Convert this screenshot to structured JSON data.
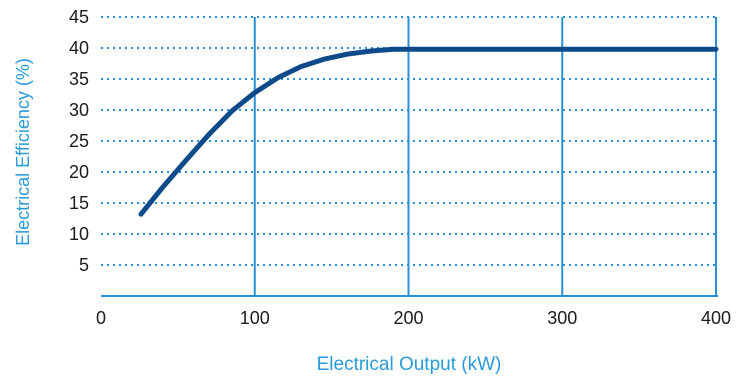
{
  "chart_data": {
    "type": "line",
    "title": "",
    "xlabel": "Electrical Output (kW)",
    "ylabel": "Electrical Efficiency (%)",
    "xlim": [
      0,
      400
    ],
    "ylim": [
      0,
      45
    ],
    "x_ticks": [
      "0",
      "100",
      "200",
      "300",
      "400"
    ],
    "y_ticks": [
      "5",
      "10",
      "15",
      "20",
      "25",
      "30",
      "35",
      "40",
      "45"
    ],
    "grid": {
      "x": "solid",
      "y": "dotted"
    },
    "series": [
      {
        "x": [
          26,
          40,
          55,
          70,
          85,
          100,
          115,
          130,
          145,
          160,
          175,
          190,
          200,
          250,
          300,
          350,
          400
        ],
        "values": [
          13.2,
          17.5,
          21.8,
          26.0,
          29.8,
          32.8,
          35.2,
          37.0,
          38.2,
          39.0,
          39.5,
          39.8,
          39.8,
          39.8,
          39.8,
          39.8,
          39.8
        ]
      }
    ],
    "colors": {
      "line": "#0d4a8a",
      "accent": "#2a8fd4",
      "axis_title": "#2a9bd8",
      "tick_text": "#1c1c1c"
    }
  }
}
